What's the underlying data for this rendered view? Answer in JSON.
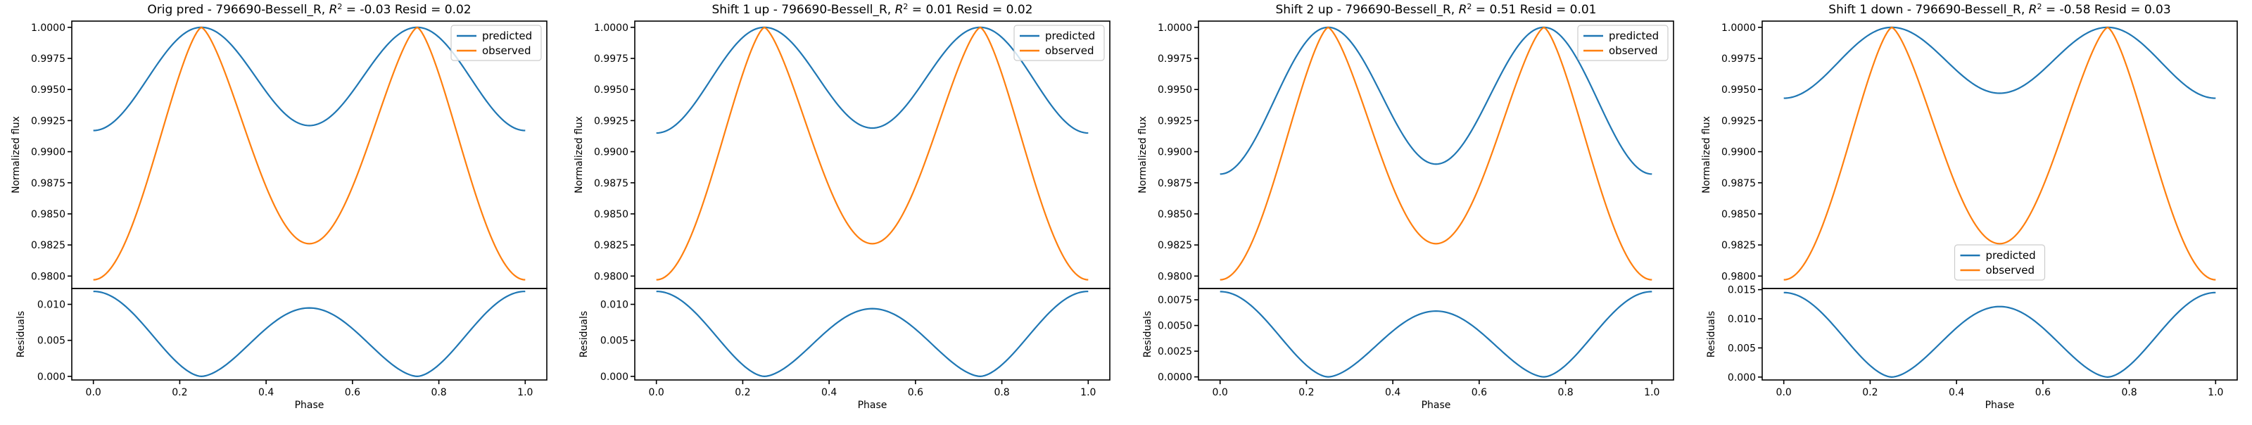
{
  "chart_data": [
    {
      "type": "line",
      "title": "Orig pred - 796690-Bessell_R, R² = -0.03 Resid = 0.02",
      "title_main": "Orig pred - 796690-Bessell_R, ",
      "title_r2": "= -0.03 Resid = 0.02",
      "xlabel": "Phase",
      "ylabel": "Normalized flux",
      "residual_ylabel": "Residuals",
      "legend_position": "upper right",
      "ylim": [
        0.979,
        1.0005
      ],
      "yticks": [
        "0.9800",
        "0.9825",
        "0.9850",
        "0.9875",
        "0.9900",
        "0.9925",
        "0.9950",
        "0.9975",
        "1.0000"
      ],
      "residual_ylim": [
        -0.0005,
        0.0122
      ],
      "residual_yticks": [
        "0.000",
        "0.005",
        "0.010"
      ],
      "xlim": [
        -0.05,
        1.05
      ],
      "xticks": [
        "0.0",
        "0.2",
        "0.4",
        "0.6",
        "0.8",
        "1.0"
      ],
      "predicted": {
        "min": 0.9917,
        "secondary_min": 0.9921
      },
      "observed": {
        "min": 0.9797,
        "secondary_min": 0.9826
      },
      "residual_at_phase_0": 0.0118,
      "residual_at_phase_0_5": 0.0095,
      "series": [
        {
          "name": "predicted",
          "color": "#1f77b4"
        },
        {
          "name": "observed",
          "color": "#ff7f0e"
        }
      ]
    },
    {
      "type": "line",
      "title": "Shift 1 up - 796690-Bessell_R, R² = 0.01 Resid = 0.02",
      "title_main": "Shift 1 up - 796690-Bessell_R, ",
      "title_r2": "= 0.01 Resid = 0.02",
      "xlabel": "Phase",
      "ylabel": "Normalized flux",
      "residual_ylabel": "Residuals",
      "legend_position": "upper right",
      "ylim": [
        0.979,
        1.0005
      ],
      "yticks": [
        "0.9800",
        "0.9825",
        "0.9850",
        "0.9875",
        "0.9900",
        "0.9925",
        "0.9950",
        "0.9975",
        "1.0000"
      ],
      "residual_ylim": [
        -0.0005,
        0.0122
      ],
      "residual_yticks": [
        "0.000",
        "0.005",
        "0.010"
      ],
      "xlim": [
        -0.05,
        1.05
      ],
      "xticks": [
        "0.0",
        "0.2",
        "0.4",
        "0.6",
        "0.8",
        "1.0"
      ],
      "predicted": {
        "min": 0.9915,
        "secondary_min": 0.9919
      },
      "observed": {
        "min": 0.9797,
        "secondary_min": 0.9826
      },
      "residual_at_phase_0": 0.0118,
      "residual_at_phase_0_5": 0.0094,
      "series": [
        {
          "name": "predicted",
          "color": "#1f77b4"
        },
        {
          "name": "observed",
          "color": "#ff7f0e"
        }
      ]
    },
    {
      "type": "line",
      "title": "Shift 2 up - 796690-Bessell_R, R² = 0.51 Resid = 0.01",
      "title_main": "Shift 2 up - 796690-Bessell_R, ",
      "title_r2": "= 0.51 Resid = 0.01",
      "xlabel": "Phase",
      "ylabel": "Normalized flux",
      "residual_ylabel": "Residuals",
      "legend_position": "upper right",
      "ylim": [
        0.979,
        1.0005
      ],
      "yticks": [
        "0.9800",
        "0.9825",
        "0.9850",
        "0.9875",
        "0.9900",
        "0.9925",
        "0.9950",
        "0.9975",
        "1.0000"
      ],
      "residual_ylim": [
        -0.0003,
        0.0086
      ],
      "residual_yticks": [
        "0.0000",
        "0.0025",
        "0.0050",
        "0.0075"
      ],
      "xlim": [
        -0.05,
        1.05
      ],
      "xticks": [
        "0.0",
        "0.2",
        "0.4",
        "0.6",
        "0.8",
        "1.0"
      ],
      "predicted": {
        "min": 0.9882,
        "secondary_min": 0.989
      },
      "observed": {
        "min": 0.9797,
        "secondary_min": 0.9826
      },
      "residual_at_phase_0": 0.0083,
      "residual_at_phase_0_5": 0.0064,
      "series": [
        {
          "name": "predicted",
          "color": "#1f77b4"
        },
        {
          "name": "observed",
          "color": "#ff7f0e"
        }
      ]
    },
    {
      "type": "line",
      "title": "Shift 1 down - 796690-Bessell_R, R² = -0.58 Resid = 0.03",
      "title_main": "Shift 1 down - 796690-Bessell_R, ",
      "title_r2": "= -0.58 Resid = 0.03",
      "xlabel": "Phase",
      "ylabel": "Normalized flux",
      "residual_ylabel": "Residuals",
      "legend_position": "lower center",
      "ylim": [
        0.979,
        1.0005
      ],
      "yticks": [
        "0.9800",
        "0.9825",
        "0.9850",
        "0.9875",
        "0.9900",
        "0.9925",
        "0.9950",
        "0.9975",
        "1.0000"
      ],
      "residual_ylim": [
        -0.0005,
        0.0152
      ],
      "residual_yticks": [
        "0.000",
        "0.005",
        "0.010",
        "0.015"
      ],
      "xlim": [
        -0.05,
        1.05
      ],
      "xticks": [
        "0.0",
        "0.2",
        "0.4",
        "0.6",
        "0.8",
        "1.0"
      ],
      "predicted": {
        "min": 0.9943,
        "secondary_min": 0.9947
      },
      "observed": {
        "min": 0.9797,
        "secondary_min": 0.9826
      },
      "residual_at_phase_0": 0.0145,
      "residual_at_phase_0_5": 0.0121,
      "series": [
        {
          "name": "predicted",
          "color": "#1f77b4"
        },
        {
          "name": "observed",
          "color": "#ff7f0e"
        }
      ]
    }
  ]
}
